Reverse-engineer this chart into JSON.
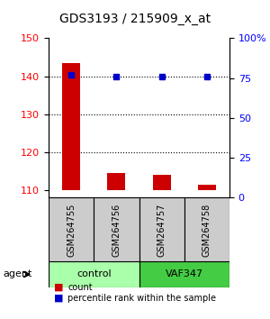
{
  "title": "GDS3193 / 215909_x_at",
  "samples": [
    "GSM264755",
    "GSM264756",
    "GSM264757",
    "GSM264758"
  ],
  "bar_values": [
    143.5,
    114.5,
    114.0,
    111.5
  ],
  "bar_bottom": 110,
  "dot_values": [
    140.5,
    140.0,
    140.0,
    140.0
  ],
  "bar_color": "#cc0000",
  "dot_color": "#0000cc",
  "ylim_left": [
    108,
    150
  ],
  "ylim_right": [
    0,
    100
  ],
  "yticks_left": [
    110,
    120,
    130,
    140,
    150
  ],
  "yticks_right": [
    0,
    25,
    50,
    75,
    100
  ],
  "ytick_labels_right": [
    "0",
    "25",
    "50",
    "75",
    "100%"
  ],
  "grid_values": [
    120,
    130,
    140
  ],
  "groups": [
    {
      "label": "control",
      "samples": [
        0,
        1
      ],
      "color": "#aaffaa"
    },
    {
      "label": "VAF347",
      "samples": [
        2,
        3
      ],
      "color": "#44cc44"
    }
  ],
  "group_row_label": "agent",
  "legend_count_label": "count",
  "legend_pct_label": "percentile rank within the sample",
  "sample_box_color": "#cccccc",
  "background_color": "#ffffff"
}
